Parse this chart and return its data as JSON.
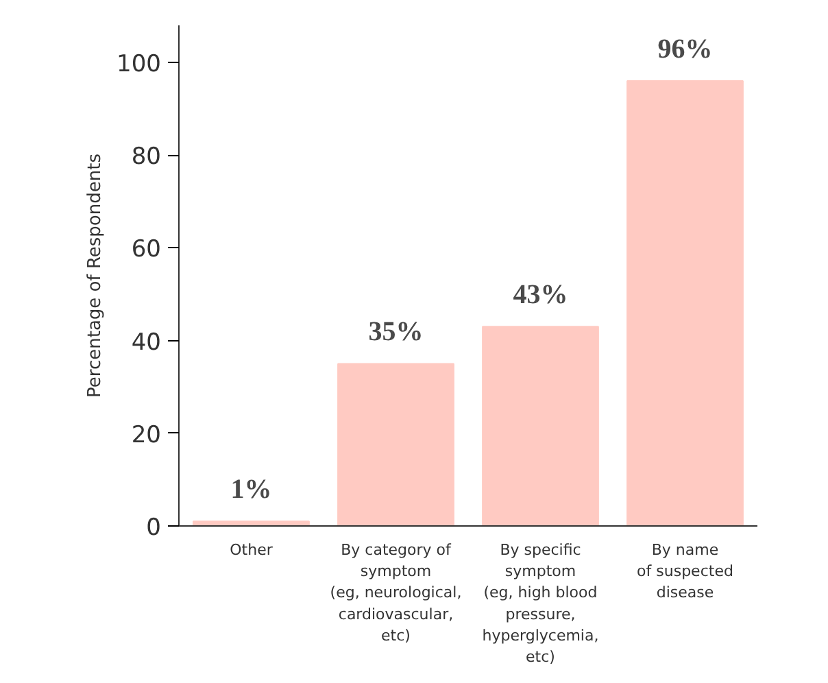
{
  "chart_data": {
    "type": "bar",
    "ylabel": "Percentage of Respondents",
    "categories": [
      "Other",
      "By category of\nsymptom\n(eg, neurological,\ncardiovascular,\netc)",
      "By specific\nsymptom\n(eg, high blood\npressure,\nhyperglycemia,\netc)",
      "By name\nof suspected\ndisease"
    ],
    "values": [
      1,
      35,
      43,
      96
    ],
    "color": "#ffcac2",
    "value_labels": [
      "1%",
      "35%",
      "43%",
      "96%"
    ],
    "ylim": [
      0,
      108
    ],
    "yticks": [
      0,
      20,
      40,
      60,
      80,
      100
    ],
    "grid": false
  }
}
